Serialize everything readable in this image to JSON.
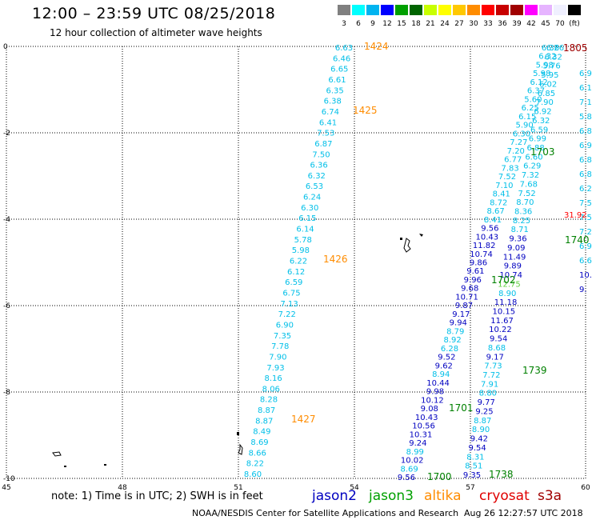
{
  "header": {
    "title": "12:00 – 23:59 UTC 08/25/2018",
    "subtitle": "12 hour collection of altimeter wave heights"
  },
  "legend": {
    "colors": [
      "#808080",
      "#00ffff",
      "#00b4f0",
      "#0000ff",
      "#00a000",
      "#006400",
      "#c8ff00",
      "#ffff00",
      "#ffc800",
      "#ff8c00",
      "#ff0000",
      "#c80000",
      "#a00000",
      "#ff00ff",
      "#e6b4ff",
      "#f0f0ff",
      "#000000"
    ],
    "labels": [
      "3",
      "6",
      "9",
      "12",
      "15",
      "18",
      "21",
      "24",
      "27",
      "30",
      "33",
      "36",
      "39",
      "42",
      "45",
      "70",
      "(ft)"
    ]
  },
  "axes": {
    "x_ticks": [
      "45",
      "48",
      "51",
      "54",
      "57",
      "60"
    ],
    "y_ticks": [
      "0",
      "-2",
      "-4",
      "-6",
      "-8",
      "-10"
    ]
  },
  "tracks": [
    {
      "id": "t1424",
      "labels": [
        {
          "t": "1424",
          "c": "#ff8c00",
          "pos": "top"
        },
        {
          "t": "1425",
          "c": "#ff8c00",
          "pos": "mid"
        },
        {
          "t": "1426",
          "c": "#ff8c00",
          "pos": "low"
        },
        {
          "t": "1427",
          "c": "#ff8c00",
          "pos": "end"
        }
      ],
      "values": [
        "6.63",
        "6.46",
        "6.65",
        "6.61",
        "6.35",
        "6.38",
        "6.74",
        "6.41",
        "7.53",
        "6.87",
        "7.50",
        "6.36",
        "6.32",
        "6.53",
        "6.24",
        "6.30",
        "6.15",
        "6.14",
        "5.78",
        "5.98",
        "6.22",
        "6.12",
        "6.59",
        "6.75",
        "7.13",
        "7.22",
        "6.90",
        "7.35",
        "7.78",
        "7.90",
        "7.93",
        "8.16",
        "8.06",
        "8.28",
        "8.87",
        "8.87",
        "8.49",
        "8.69",
        "8.66",
        "8.22",
        "8.60"
      ]
    },
    {
      "id": "t1700",
      "labels": [
        {
          "t": "1700",
          "c": "#008000"
        },
        {
          "t": "1701",
          "c": "#008000"
        },
        {
          "t": "1702",
          "c": "#008000"
        },
        {
          "t": "1703",
          "c": "#008000"
        }
      ],
      "values": [
        "9.56",
        "8.69",
        "10.02",
        "8.99",
        "9.24",
        "10.31",
        "10.56",
        "10.43",
        "9.08",
        "10.12",
        "9.98",
        "10.44",
        "8.94",
        "9.62",
        "9.52",
        "6.28",
        "8.92",
        "8.79",
        "9.94",
        "9.17",
        "9.87",
        "10.71",
        "9.68",
        "9.96",
        "9.61",
        "9.86",
        "10.74",
        "11.82",
        "10.43",
        "9.56",
        "8.41",
        "8.67",
        "8.72",
        "8.41",
        "7.10",
        "7.52",
        "7.83",
        "6.77",
        "7.20",
        "7.27",
        "6.30",
        "5.90",
        "6.15",
        "6.25",
        "5.60",
        "6.37",
        "6.12",
        "5.98",
        "5.98",
        "6.32",
        "6.36"
      ]
    },
    {
      "id": "t1738",
      "labels": [
        {
          "t": "1738",
          "c": "#008000"
        },
        {
          "t": "1739",
          "c": "#008000"
        },
        {
          "t": "1740",
          "c": "#008000"
        }
      ],
      "values": [
        "9.35",
        "8.51",
        "8.31",
        "9.54",
        "9.42",
        "8.90",
        "8.87",
        "9.25",
        "9.77",
        "8.80",
        "7.91",
        "7.72",
        "7.73",
        "9.17",
        "8.68",
        "9.54",
        "10.22",
        "11.67",
        "10.15",
        "11.18",
        "8.90",
        "12.75",
        "10.74",
        "9.89",
        "11.49",
        "9.09",
        "9.36",
        "8.71",
        "8.25",
        "8.36",
        "8.70",
        "7.52",
        "7.68",
        "7.32",
        "6.29",
        "6.60",
        "6.88",
        "6.99",
        "6.59",
        "6.32",
        "6.92",
        "7.90",
        "6.85",
        "6.02",
        "5.95",
        "5.76",
        "6.32",
        "6.26"
      ]
    }
  ],
  "right_edge_labels": [
    {
      "t": "1805",
      "c": "#a00000"
    },
    {
      "t": "31.92",
      "c": "#ff0000"
    }
  ],
  "footer": {
    "note": "note:  1) Time is in UTC;  2) SWH is in feet",
    "satellites": [
      {
        "name": "jason2",
        "color": "#0000c0"
      },
      {
        "name": "jason3",
        "color": "#00a000"
      },
      {
        "name": "altika",
        "color": "#ff8c00"
      },
      {
        "name": "cryosat",
        "color": "#e00000"
      },
      {
        "name": "s3a",
        "color": "#a00000"
      }
    ],
    "credit": "NOAA/NESDIS Center for Satellite Applications and Research",
    "timestamp": "Aug 26 12:27:57 UTC 2018"
  }
}
